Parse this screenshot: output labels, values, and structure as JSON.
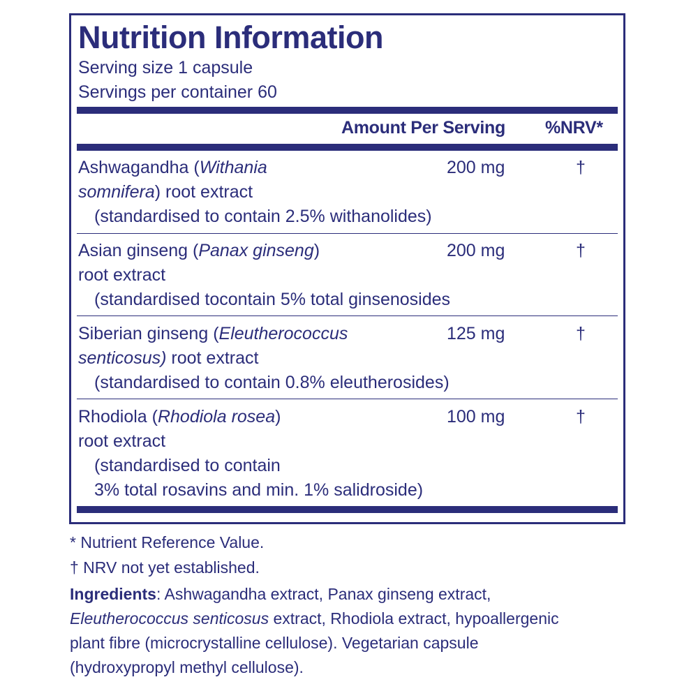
{
  "title": "Nutrition Information",
  "serving_size": "Serving size  1 capsule",
  "servings_per_container": "Servings per container  60",
  "header": {
    "amount": "Amount Per Serving",
    "nrv": "%NRV*"
  },
  "rows": [
    {
      "name_pre": "Ashwagandha (",
      "latin1": "Withania",
      "line2_latin": "somnifera",
      "line2_rest": ") root extract",
      "std": "(standardised to contain 2.5% withanolides)",
      "amount": "200 mg",
      "nrv": "†"
    },
    {
      "name_pre": "Asian ginseng (",
      "latin1": "Panax ginseng",
      "name_post": ")",
      "line2": "root extract",
      "std": "(standardised tocontain 5% total ginsenosides",
      "amount": "200 mg",
      "nrv": "†"
    },
    {
      "name_pre": "Siberian ginseng (",
      "latin1": "Eleutherococcus",
      "line2_latin": "senticosus)",
      "line2_rest": " root extract",
      "std": "(standardised to contain 0.8% eleutherosides)",
      "amount": "125 mg",
      "nrv": "†"
    },
    {
      "name_pre": "Rhodiola (",
      "latin1": "Rhodiola rosea",
      "name_post": ")",
      "line2": "root extract",
      "std": "(standardised to contain",
      "std2": "3% total rosavins and min. 1% salidroside)",
      "amount": "100 mg",
      "nrv": "†"
    }
  ],
  "footnotes": {
    "nrv_def": "* Nutrient Reference Value.",
    "nrv_na": "† NRV not yet established.",
    "ingredients_label": "Ingredients",
    "ingredients_line1": ": Ashwagandha extract, Panax ginseng extract,",
    "ingredients_line2_latin": "Eleutherococcus senticosus",
    "ingredients_line2_rest": " extract, Rhodiola extract, hypoallergenic",
    "ingredients_line3": "plant fibre (microcrystalline cellulose). Vegetarian capsule",
    "ingredients_line4": "(hydroxypropyl methyl cellulose)."
  },
  "colors": {
    "primary": "#2b2d7a",
    "background": "#ffffff"
  }
}
